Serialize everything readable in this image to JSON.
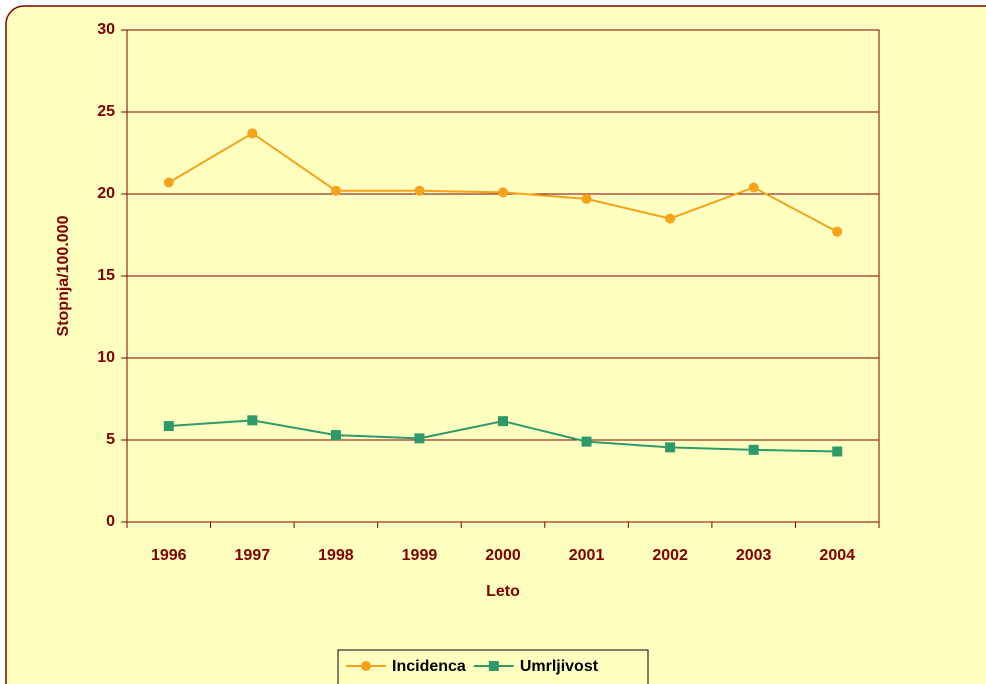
{
  "chart_data": {
    "type": "line",
    "x_label": "Leto",
    "y_label": "Stopnja/100.000",
    "categories": [
      "1996",
      "1997",
      "1998",
      "1999",
      "2000",
      "2001",
      "2002",
      "2003",
      "2004"
    ],
    "series": [
      {
        "name": "Incidenca",
        "color": "#F7A21B",
        "marker": "circle",
        "values": [
          20.7,
          23.7,
          20.2,
          20.2,
          20.1,
          19.7,
          18.5,
          20.4,
          17.7
        ]
      },
      {
        "name": "Umrljivost",
        "color": "#2E9A6A",
        "marker": "square",
        "values": [
          5.85,
          6.2,
          5.3,
          5.1,
          6.15,
          4.9,
          4.55,
          4.4,
          4.3
        ]
      }
    ],
    "ylim": [
      0,
      30
    ],
    "yticks": [
      0,
      5,
      10,
      15,
      20,
      25,
      30
    ],
    "grid": true,
    "legend": "bottom"
  }
}
